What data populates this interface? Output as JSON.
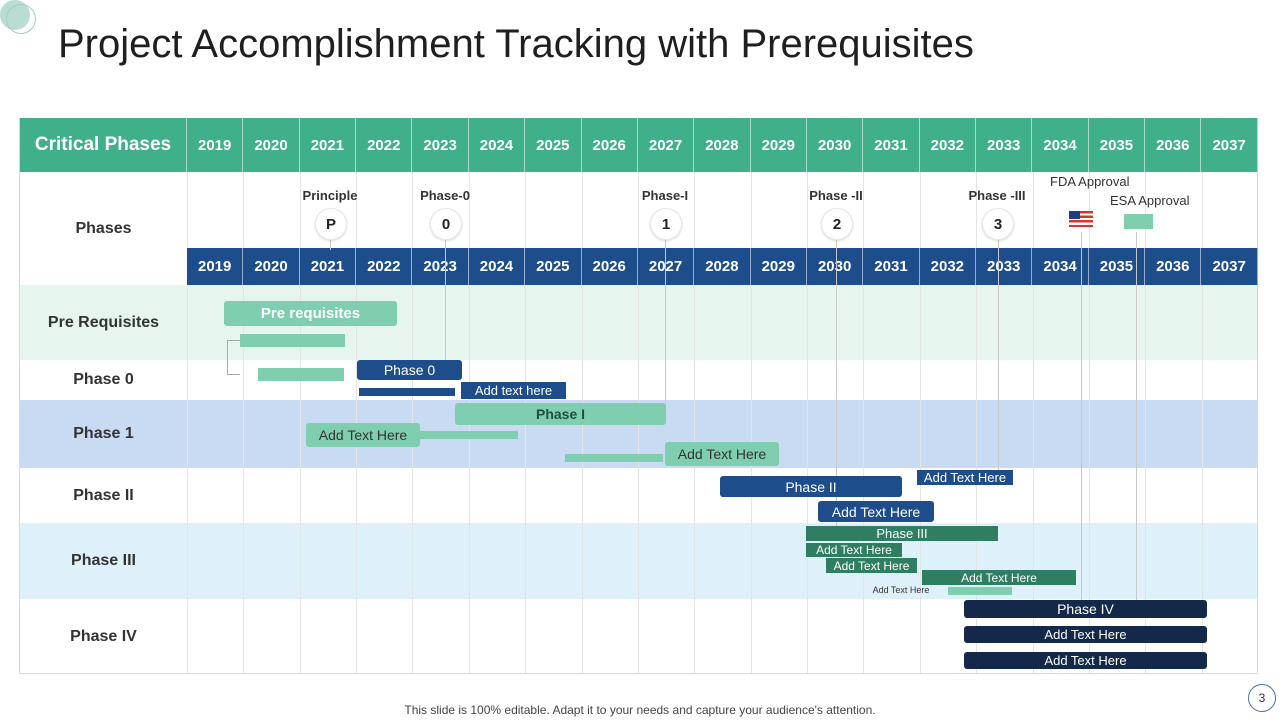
{
  "title": "Project Accomplishment Tracking with Prerequisites",
  "header_label": "Critical Phases",
  "years": [
    "2019",
    "2020",
    "2021",
    "2022",
    "2023",
    "2024",
    "2025",
    "2026",
    "2027",
    "2028",
    "2029",
    "2030",
    "2031",
    "2032",
    "2033",
    "2034",
    "2035",
    "2036",
    "2037"
  ],
  "row_labels": {
    "phases": "Phases",
    "prereq": "Pre Requisites",
    "phase0": "Phase 0",
    "phase1": "Phase 1",
    "phase2": "Phase II",
    "phase3": "Phase III",
    "phase4": "Phase IV"
  },
  "milestones": [
    {
      "label": "Principle",
      "symbol": "P"
    },
    {
      "label": "Phase-0",
      "symbol": "0"
    },
    {
      "label": "Phase-I",
      "symbol": "1"
    },
    {
      "label": "Phase -II",
      "symbol": "2"
    },
    {
      "label": "Phase -III",
      "symbol": "3"
    }
  ],
  "approvals": {
    "fda": "FDA Approval",
    "esa": "ESA Approval"
  },
  "bars": {
    "prereq_main": "Pre requisites",
    "phase0_main": "Phase 0",
    "phase0_sub": "Add text here",
    "phase1_main": "Phase I",
    "phase1_sub1": "Add Text Here",
    "phase1_sub2": "Add Text Here",
    "phase2_main": "Phase II",
    "phase2_sub1": "Add Text Here",
    "phase2_sub2": "Add Text Here",
    "phase3_main": "Phase III",
    "phase3_sub1": "Add Text Here",
    "phase3_sub2": "Add Text Here",
    "phase3_sub3": "Add Text Here",
    "phase3_sub4": "Add Text Here",
    "phase4_main": "Phase IV",
    "phase4_sub1": "Add Text Here",
    "phase4_sub2": "Add Text Here"
  },
  "footer": "This slide is 100% editable. Adapt it to your needs and capture your audience's attention.",
  "page_number": "3",
  "colors": {
    "green": "#3fb08a",
    "navy": "#1e4d8c",
    "teal": "#7fceb0",
    "dark_navy": "#14294a",
    "dark_green": "#2f7e62"
  }
}
